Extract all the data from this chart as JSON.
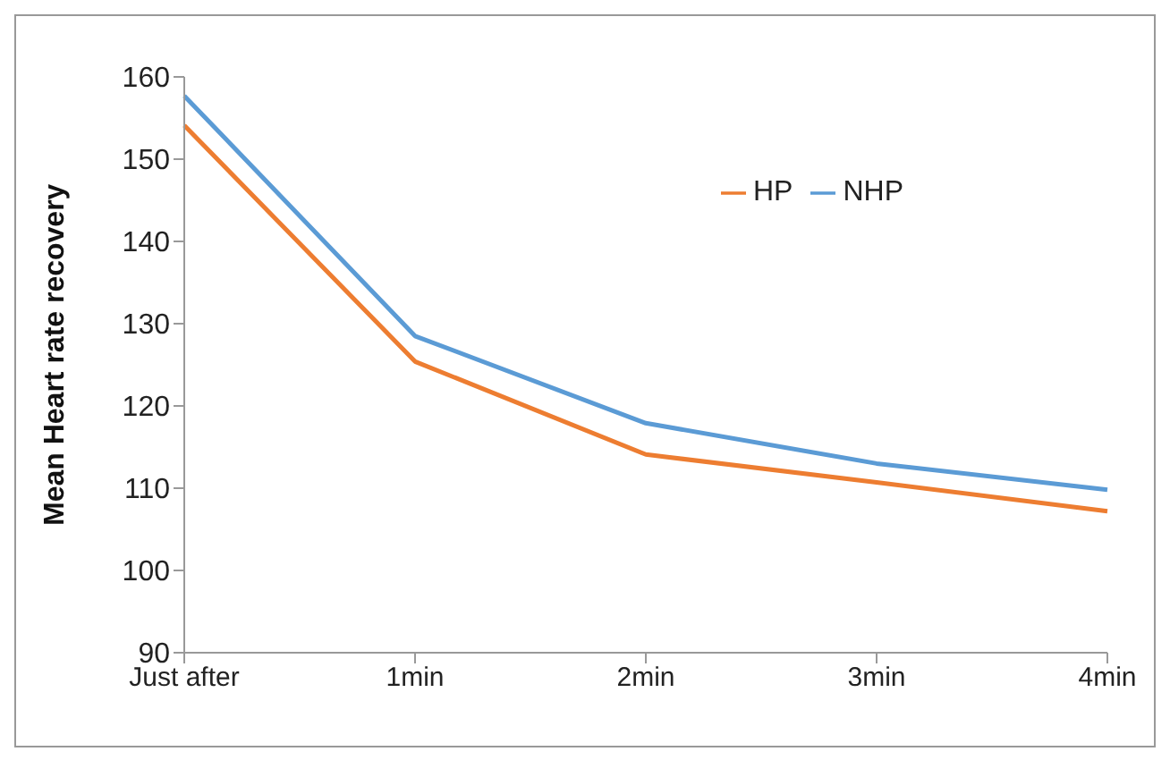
{
  "chart_data": {
    "type": "line",
    "ylabel": "Mean Heart rate recovery",
    "categories": [
      "Just after",
      "1min",
      "2min",
      "3min",
      "4min"
    ],
    "series": [
      {
        "name": "NHP",
        "color": "#5b9bd5",
        "values": [
          157.7,
          128.5,
          117.9,
          113.0,
          109.8
        ]
      },
      {
        "name": "HP",
        "color": "#ed7d31",
        "values": [
          154.1,
          125.4,
          114.1,
          110.7,
          107.2
        ]
      }
    ],
    "ylim": [
      90,
      160
    ],
    "yticks": [
      90,
      100,
      110,
      120,
      130,
      140,
      150,
      160
    ],
    "grid": false,
    "legend": "top right",
    "marker": "none",
    "line_style": "solid"
  }
}
